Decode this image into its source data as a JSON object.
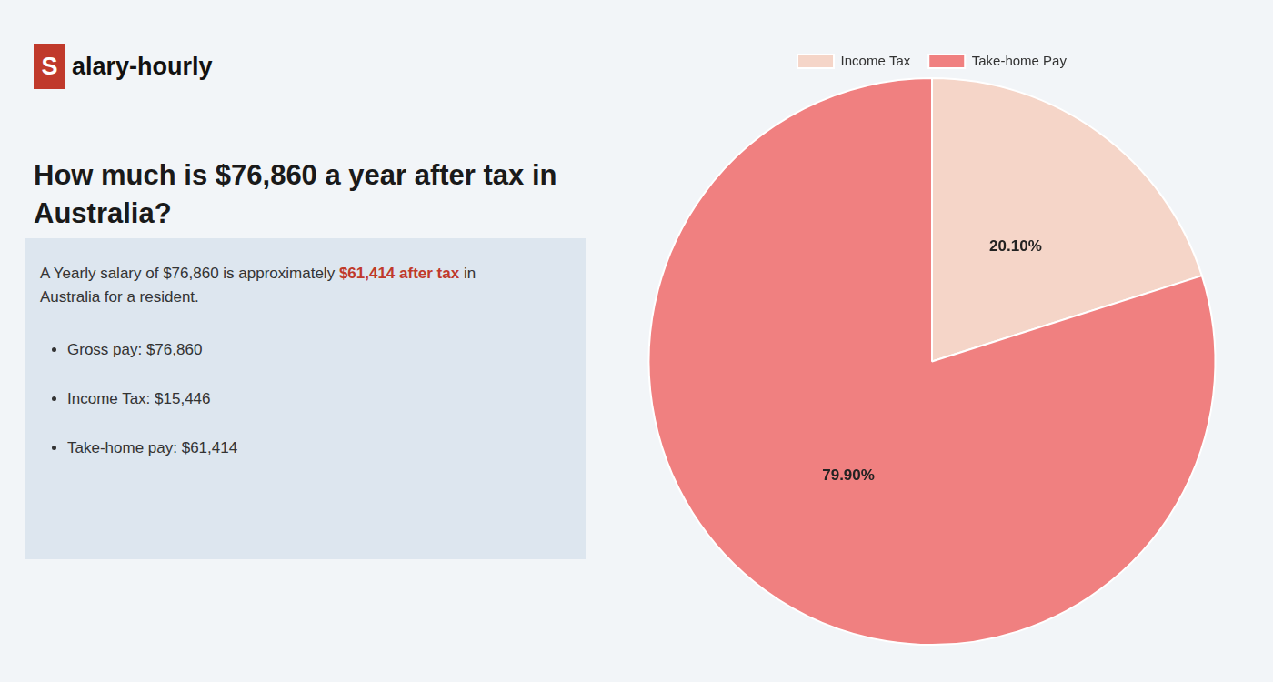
{
  "chart_data": {
    "type": "pie",
    "title": "How much is $76,860 a year after tax in\nAustralia?",
    "annotations": [
      "S",
      "alary-hourly",
      "A Yearly salary of $76,860 is approximately ",
      "$61,414 after tax",
      " in",
      "Australia for a resident.",
      "Gross pay: $76,860",
      "Income Tax: $15,446",
      "Take-home pay: $61,414"
    ],
    "categories": [
      "Income Tax",
      "Take-home Pay"
    ],
    "values": [
      20.1,
      79.9
    ],
    "value_labels": [
      "20.10%",
      "79.90%"
    ],
    "colors": [
      "#f5d5c8",
      "#f08080"
    ],
    "data_labels": true,
    "legend": "top"
  }
}
